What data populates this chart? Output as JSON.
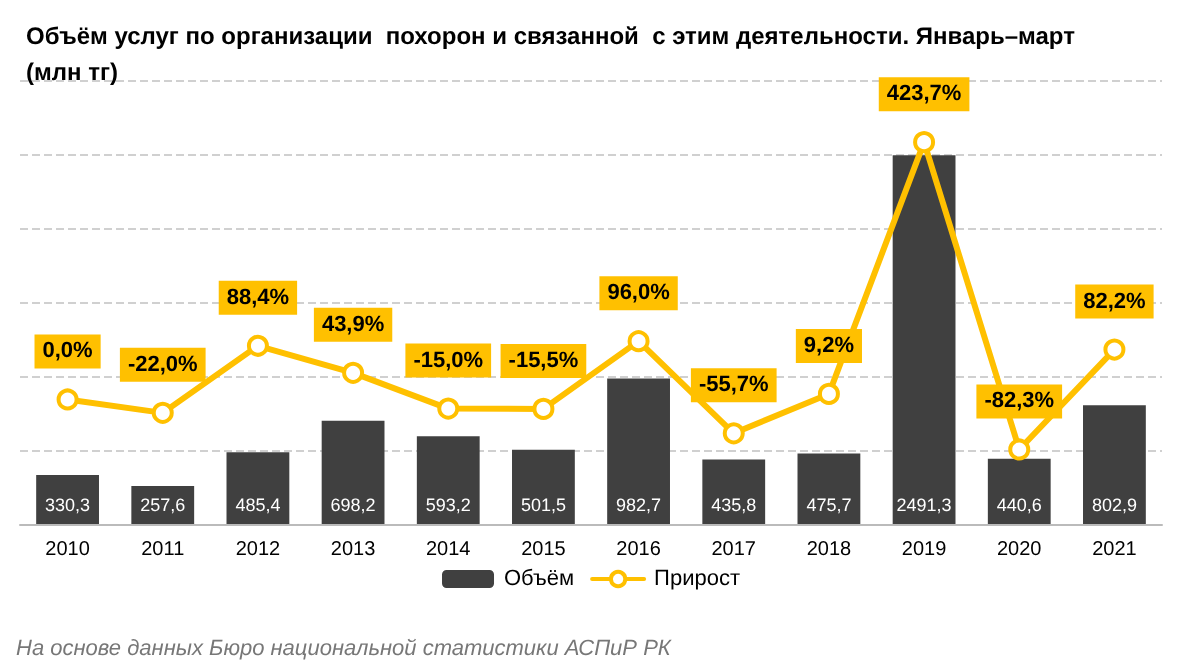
{
  "chart_data": {
    "type": "bar",
    "title": "Объём услуг по организации  похорон и связанной  с этим деятельности. Январь–март\n(млн тг)",
    "categories": [
      "2010",
      "2011",
      "2012",
      "2013",
      "2014",
      "2015",
      "2016",
      "2017",
      "2018",
      "2019",
      "2020",
      "2021"
    ],
    "series": [
      {
        "name": "Объём",
        "color": "#404040",
        "values": [
          330.3,
          257.6,
          485.4,
          698.2,
          593.2,
          501.5,
          982.7,
          435.8,
          475.7,
          2491.3,
          440.6,
          802.9
        ],
        "value_labels": [
          "330,3",
          "257,6",
          "485,4",
          "698,2",
          "593,2",
          "501,5",
          "982,7",
          "435,8",
          "475,7",
          "2491,3",
          "440,6",
          "802,9"
        ]
      },
      {
        "name": "Прирост",
        "type": "line",
        "axis": "y2",
        "color": "#ffc000",
        "marker": "circle",
        "values": [
          0.0,
          -22.0,
          88.4,
          43.9,
          -15.0,
          -15.5,
          96.0,
          -55.7,
          9.2,
          423.7,
          -82.3,
          82.2
        ],
        "value_labels": [
          "0,0%",
          "-22,0%",
          "88,4%",
          "43,9%",
          "-15,0%",
          "-15,5%",
          "96,0%",
          "-55,7%",
          "9,2%",
          "423,7%",
          "-82,3%",
          "82,2%"
        ]
      }
    ],
    "ylim": [
      0,
      3000
    ],
    "yticks": [
      {
        "value": 0,
        "label": null
      },
      {
        "value": 500,
        "label": null
      },
      {
        "value": 1000,
        "label": null
      },
      {
        "value": 1500,
        "label": null
      },
      {
        "value": 2000,
        "label": null
      },
      {
        "value": 2500,
        "label": null
      },
      {
        "value": 3000,
        "label": null
      }
    ],
    "y2lim": [
      -205,
      526
    ],
    "grid": "y",
    "legend": "bottom",
    "tick_labels": "x",
    "annotations": [
      "На основе данных Бюро национальной статистики АСПиР РК"
    ]
  }
}
